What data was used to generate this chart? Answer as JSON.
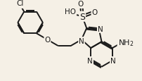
{
  "bg_color": "#f5f0e6",
  "bond_color": "#1a1a1a",
  "bond_width": 1.4,
  "font_size": 7.5,
  "fig_width": 2.02,
  "fig_height": 1.16,
  "dpi": 100,
  "xlim": [
    0,
    10
  ],
  "ylim": [
    0,
    5.75
  ]
}
